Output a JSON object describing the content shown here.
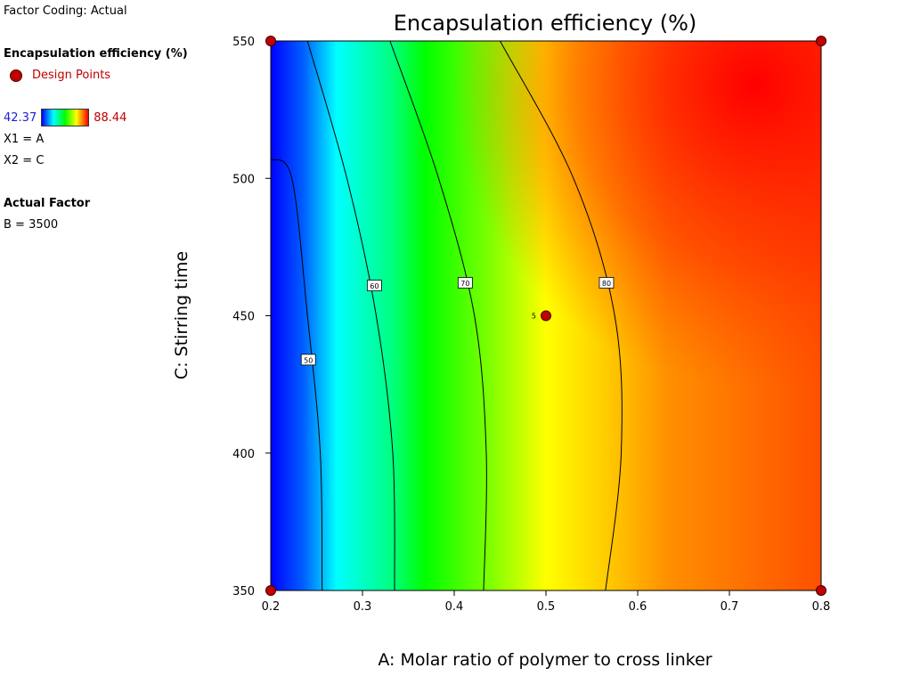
{
  "legend": {
    "factor_coding": "Factor Coding: Actual",
    "response_name": "Encapsulation efficiency (%)",
    "design_points_label": "Design Points",
    "scale_min": "42.37",
    "scale_max": "88.44",
    "x1": "X1 = A",
    "x2": "X2 = C",
    "actual_factor_title": "Actual Factor",
    "actual_factor_value": "B = 3500"
  },
  "colors": {
    "low": "#0000ff",
    "high": "#ff0000",
    "design_point": "#c00000",
    "contour_line": "#000000"
  },
  "chart_data": {
    "type": "contour",
    "title": "Encapsulation efficiency (%)",
    "xlabel": "A: Molar ratio of polymer to cross linker",
    "ylabel": "C: Stirring time",
    "xlim": [
      0.2,
      0.8
    ],
    "ylim": [
      350,
      550
    ],
    "x_ticks": [
      "0.2",
      "0.3",
      "0.4",
      "0.5",
      "0.6",
      "0.7",
      "0.8"
    ],
    "y_ticks": [
      "350",
      "400",
      "450",
      "500",
      "550"
    ],
    "color_range": [
      42.37,
      88.44
    ],
    "contours": [
      {
        "level": "50",
        "label_at": [
          0.241,
          434
        ],
        "points": [
          [
            0.256,
            350
          ],
          [
            0.254,
            400
          ],
          [
            0.24,
            450
          ],
          [
            0.223,
            500
          ],
          [
            0.2,
            507
          ]
        ]
      },
      {
        "level": "60",
        "label_at": [
          0.313,
          461
        ],
        "points": [
          [
            0.335,
            350
          ],
          [
            0.333,
            400
          ],
          [
            0.315,
            450
          ],
          [
            0.283,
            500
          ],
          [
            0.24,
            550
          ]
        ]
      },
      {
        "level": "70",
        "label_at": [
          0.412,
          462
        ],
        "points": [
          [
            0.432,
            350
          ],
          [
            0.435,
            400
          ],
          [
            0.422,
            450
          ],
          [
            0.383,
            500
          ],
          [
            0.33,
            550
          ]
        ]
      },
      {
        "level": "80",
        "label_at": [
          0.566,
          462
        ],
        "points": [
          [
            0.565,
            350
          ],
          [
            0.582,
            400
          ],
          [
            0.575,
            450
          ],
          [
            0.53,
            500
          ],
          [
            0.45,
            550
          ]
        ]
      }
    ],
    "design_points": [
      {
        "x": 0.2,
        "y": 350,
        "label": ""
      },
      {
        "x": 0.2,
        "y": 550,
        "label": ""
      },
      {
        "x": 0.8,
        "y": 350,
        "label": ""
      },
      {
        "x": 0.8,
        "y": 550,
        "label": ""
      },
      {
        "x": 0.5,
        "y": 450,
        "label": "5"
      }
    ],
    "grid": false
  }
}
